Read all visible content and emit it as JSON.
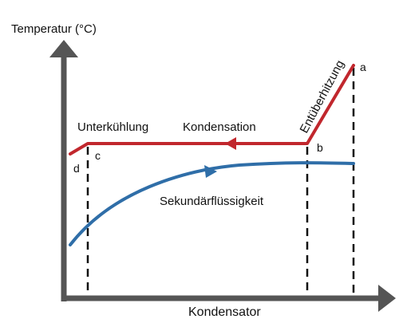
{
  "axes": {
    "y_label": "Temperatur (°C)",
    "x_label": "Kondensator"
  },
  "colors": {
    "refrigerant": "#c1272d",
    "secondary_fluid": "#2f6ea8",
    "axis": "#555555",
    "guides": "#111111"
  },
  "annotations": {
    "desuperheating": "Entüberhitzung",
    "condensation": "Kondensation",
    "subcooling": "Unterkühlung",
    "secondary_fluid": "Sekundärflüssigkeit"
  },
  "points": {
    "a": "a",
    "b": "b",
    "c": "c",
    "d": "d"
  }
}
